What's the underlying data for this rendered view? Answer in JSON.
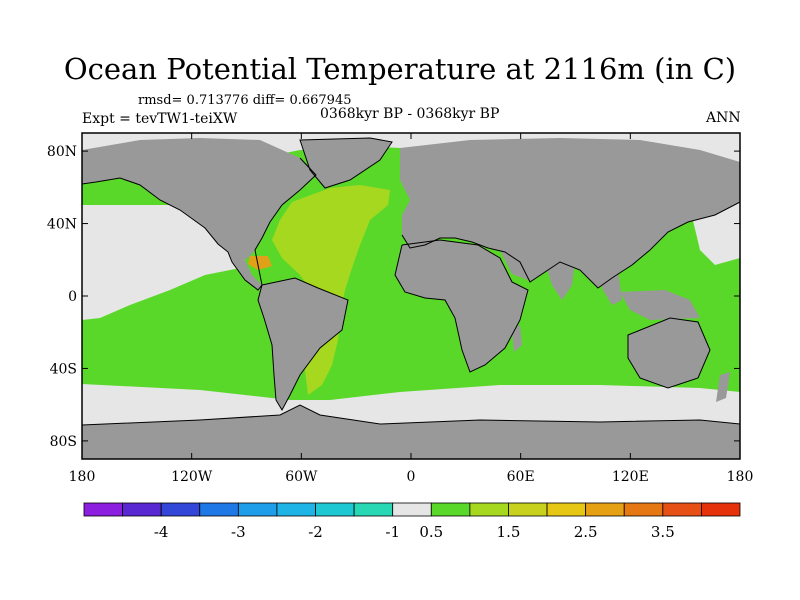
{
  "title": "Ocean Potential Temperature at 2116m (in C)",
  "stats": "rmsd= 0.713776 diff= 0.667945",
  "experiment": "Expt = tevTW1-teiXW",
  "period": "0368kyr BP - 0368kyr BP",
  "season": "ANN",
  "colors": {
    "land": "#999999",
    "frame": "#000000",
    "near_zero": "#e6e6e6",
    "green": "#5ad82a",
    "yellow_green": "#a6d820",
    "olive": "#c4cf28",
    "orange": "#e0a018"
  },
  "chart_data": {
    "type": "map",
    "title": "Ocean Potential Temperature at 2116m (in C)",
    "projection": "cylindrical equidistant",
    "x_range": [
      -180,
      180
    ],
    "y_range": [
      -90,
      90
    ],
    "x_ticks": [
      {
        "value": -180,
        "label": "180"
      },
      {
        "value": -120,
        "label": "120W"
      },
      {
        "value": -60,
        "label": "60W"
      },
      {
        "value": 0,
        "label": "0"
      },
      {
        "value": 60,
        "label": "60E"
      },
      {
        "value": 120,
        "label": "120E"
      },
      {
        "value": 180,
        "label": "180"
      }
    ],
    "y_ticks": [
      {
        "value": 80,
        "label": "80N"
      },
      {
        "value": 40,
        "label": "40N"
      },
      {
        "value": 0,
        "label": "0"
      },
      {
        "value": -40,
        "label": "40S"
      },
      {
        "value": -80,
        "label": "80S"
      }
    ],
    "colorbar": {
      "colors": [
        "#8c1ee0",
        "#5a28d2",
        "#3246d8",
        "#1e78e6",
        "#1e9ee8",
        "#1eb4e6",
        "#1ec8d2",
        "#28d8b4",
        "#e6e6e6",
        "#5ad82a",
        "#a6d820",
        "#c8d21e",
        "#e6c814",
        "#e6a014",
        "#e67814",
        "#e65014",
        "#e6320a"
      ],
      "labels": [
        {
          "after_box": 2,
          "text": "-4"
        },
        {
          "after_box": 4,
          "text": "-3"
        },
        {
          "after_box": 6,
          "text": "-2"
        },
        {
          "after_box": 8,
          "text": "-1"
        },
        {
          "after_box": 9,
          "text": "0.5"
        },
        {
          "after_box": 11,
          "text": "1.5"
        },
        {
          "after_box": 13,
          "text": "2.5"
        },
        {
          "after_box": 15,
          "text": "3.5"
        }
      ]
    }
  }
}
